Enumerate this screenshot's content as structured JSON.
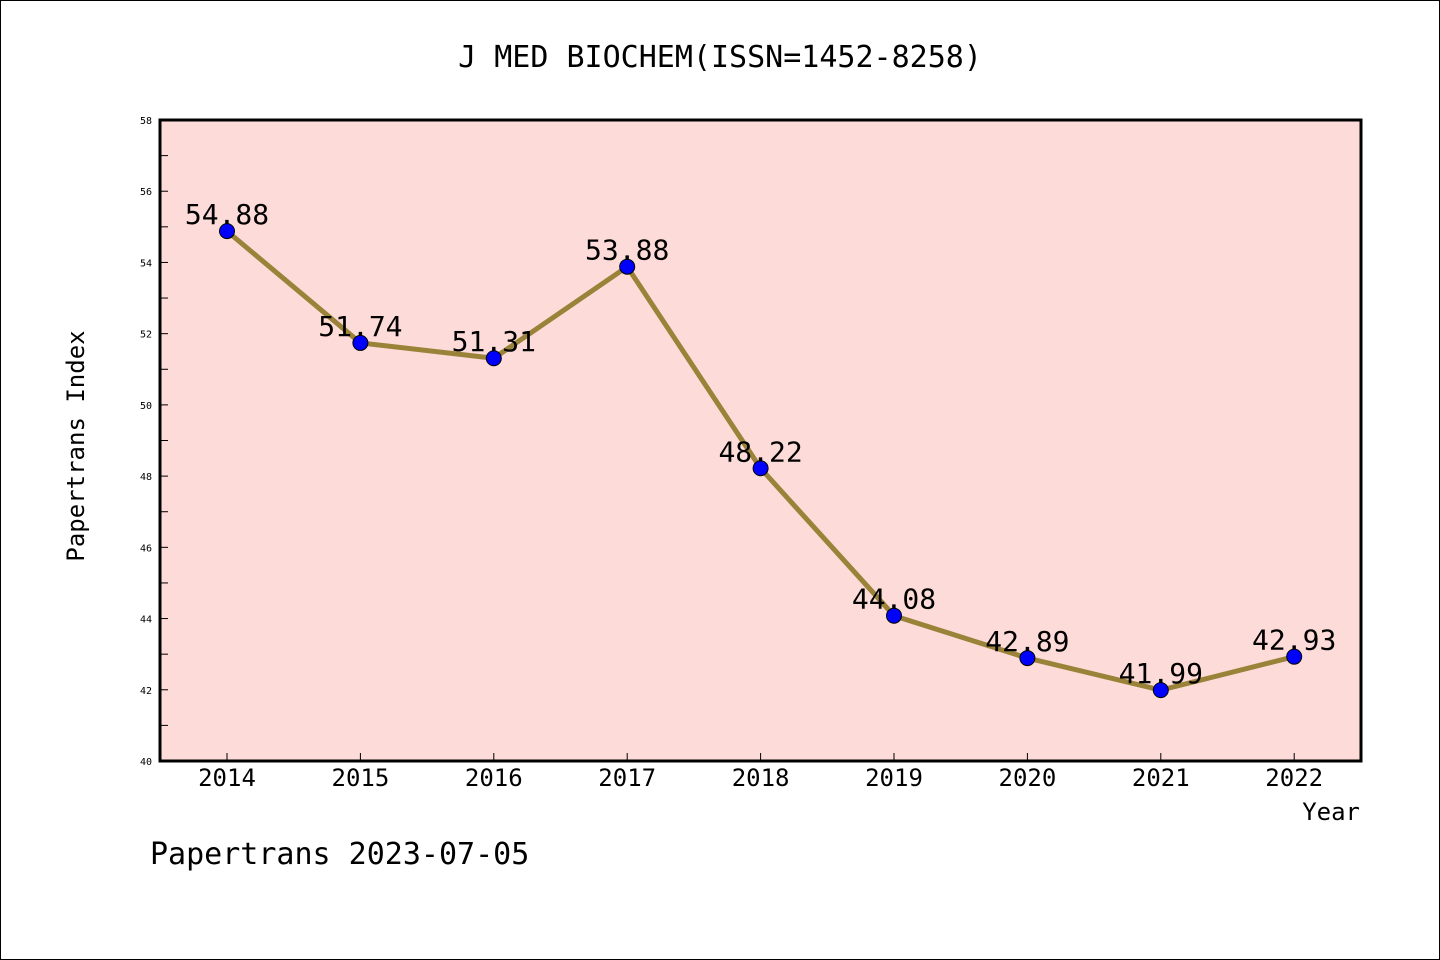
{
  "colors": {
    "plot_background": "#fddbd8",
    "line": "#9a8238",
    "marker": "#0000ff",
    "frame": "#000000"
  },
  "chart_data": {
    "type": "line",
    "title": "J MED BIOCHEM(ISSN=1452-8258)",
    "xlabel": "Year",
    "ylabel": "Papertrans Index",
    "x": [
      "2014",
      "2015",
      "2016",
      "2017",
      "2018",
      "2019",
      "2020",
      "2021",
      "2022"
    ],
    "series": [
      {
        "values": [
          54.88,
          51.74,
          51.31,
          53.88,
          48.22,
          44.08,
          42.89,
          41.99,
          42.93
        ],
        "labels": [
          "54.88",
          "51.74",
          "51.31",
          "53.88",
          "48.22",
          "44.08",
          "42.89",
          "41.99",
          "42.93"
        ]
      }
    ],
    "ylim": [
      40,
      58
    ],
    "yticks": [
      "40",
      "42",
      "44",
      "46",
      "48",
      "50",
      "52",
      "54",
      "56",
      "58"
    ],
    "grid": false,
    "legend": "none"
  },
  "footer": "Papertrans 2023-07-05"
}
